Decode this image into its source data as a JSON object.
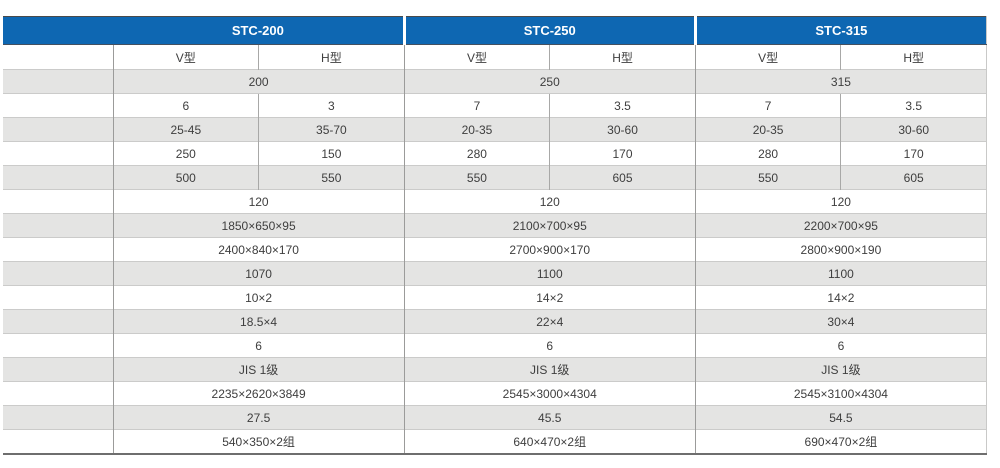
{
  "theme": {
    "header_blue": "#0e67b2",
    "header_text": "#ffffff",
    "stripe_gray": "#e4e4e3",
    "row_white": "#ffffff",
    "grid_line": "#9b9b9a",
    "bottom_border": "#6e6e6e"
  },
  "sections": [
    {
      "title": "STC-200",
      "v_label": "V型",
      "h_label": "H型",
      "rows": [
        {
          "value": "200"
        },
        {
          "v": "6",
          "h": "3"
        },
        {
          "v": "25-45",
          "h": "35-70"
        },
        {
          "v": "250",
          "h": "150"
        },
        {
          "v": "500",
          "h": "550"
        },
        {
          "value": "120"
        },
        {
          "value": "1850×650×95"
        },
        {
          "value": "2400×840×170"
        },
        {
          "value": "1070"
        },
        {
          "value": "10×2"
        },
        {
          "value": "18.5×4"
        },
        {
          "value": "6"
        },
        {
          "value": "JIS 1级"
        },
        {
          "value": "2235×2620×3849"
        },
        {
          "value": "27.5"
        },
        {
          "value": "540×350×2组"
        }
      ]
    },
    {
      "title": "STC-250",
      "v_label": "V型",
      "h_label": "H型",
      "rows": [
        {
          "value": "250"
        },
        {
          "v": "7",
          "h": "3.5"
        },
        {
          "v": "20-35",
          "h": "30-60"
        },
        {
          "v": "280",
          "h": "170"
        },
        {
          "v": "550",
          "h": "605"
        },
        {
          "value": "120"
        },
        {
          "value": "2100×700×95"
        },
        {
          "value": "2700×900×170"
        },
        {
          "value": "1100"
        },
        {
          "value": "14×2"
        },
        {
          "value": "22×4"
        },
        {
          "value": "6"
        },
        {
          "value": "JIS 1级"
        },
        {
          "value": "2545×3000×4304"
        },
        {
          "value": "45.5"
        },
        {
          "value": "640×470×2组"
        }
      ]
    },
    {
      "title": "STC-315",
      "v_label": "V型",
      "h_label": "H型",
      "rows": [
        {
          "value": "315"
        },
        {
          "v": "7",
          "h": "3.5"
        },
        {
          "v": "20-35",
          "h": "30-60"
        },
        {
          "v": "280",
          "h": "170"
        },
        {
          "v": "550",
          "h": "605"
        },
        {
          "value": "120"
        },
        {
          "value": "2200×700×95"
        },
        {
          "value": "2800×900×190"
        },
        {
          "value": "1100"
        },
        {
          "value": "14×2"
        },
        {
          "value": "30×4"
        },
        {
          "value": "6"
        },
        {
          "value": "JIS 1级"
        },
        {
          "value": "2545×3100×4304"
        },
        {
          "value": "54.5"
        },
        {
          "value": "690×470×2组"
        }
      ]
    }
  ]
}
